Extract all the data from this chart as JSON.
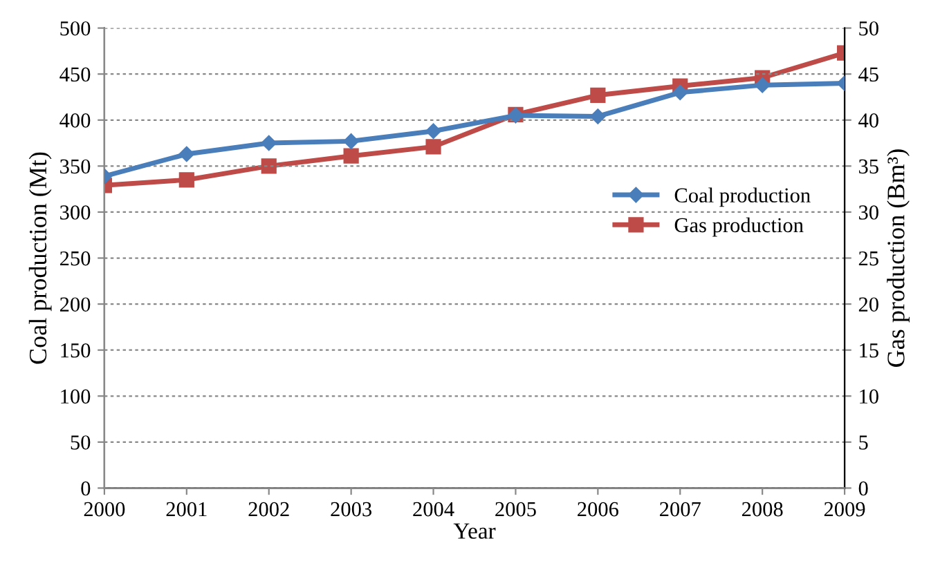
{
  "chart_data": {
    "type": "line",
    "xlabel": "Year",
    "ylabel": "Coal production (Mt)",
    "y2label": "Gas production (Bm³)",
    "categories": [
      "2000",
      "2001",
      "2002",
      "2003",
      "2004",
      "2005",
      "2006",
      "2007",
      "2008",
      "2009"
    ],
    "series": [
      {
        "name": "Coal production",
        "color": "#4a7ebb",
        "marker": "diamond",
        "values": [
          339,
          363,
          375,
          377,
          388,
          405,
          404,
          430,
          438,
          440
        ]
      },
      {
        "name": "Gas production",
        "color": "#be4b48",
        "marker": "square",
        "axis": "y2",
        "values": [
          32.9,
          33.5,
          35.0,
          36.1,
          37.1,
          40.6,
          42.7,
          43.7,
          44.6,
          47.3
        ]
      }
    ],
    "ylim": [
      0,
      500
    ],
    "yticks": [
      0,
      50,
      100,
      150,
      200,
      250,
      300,
      350,
      400,
      450,
      500
    ],
    "y2lim": [
      0,
      50
    ],
    "y2ticks": [
      0,
      5,
      10,
      15,
      20,
      25,
      30,
      35,
      40,
      45,
      50
    ],
    "grid": "y",
    "legend": "center right"
  }
}
